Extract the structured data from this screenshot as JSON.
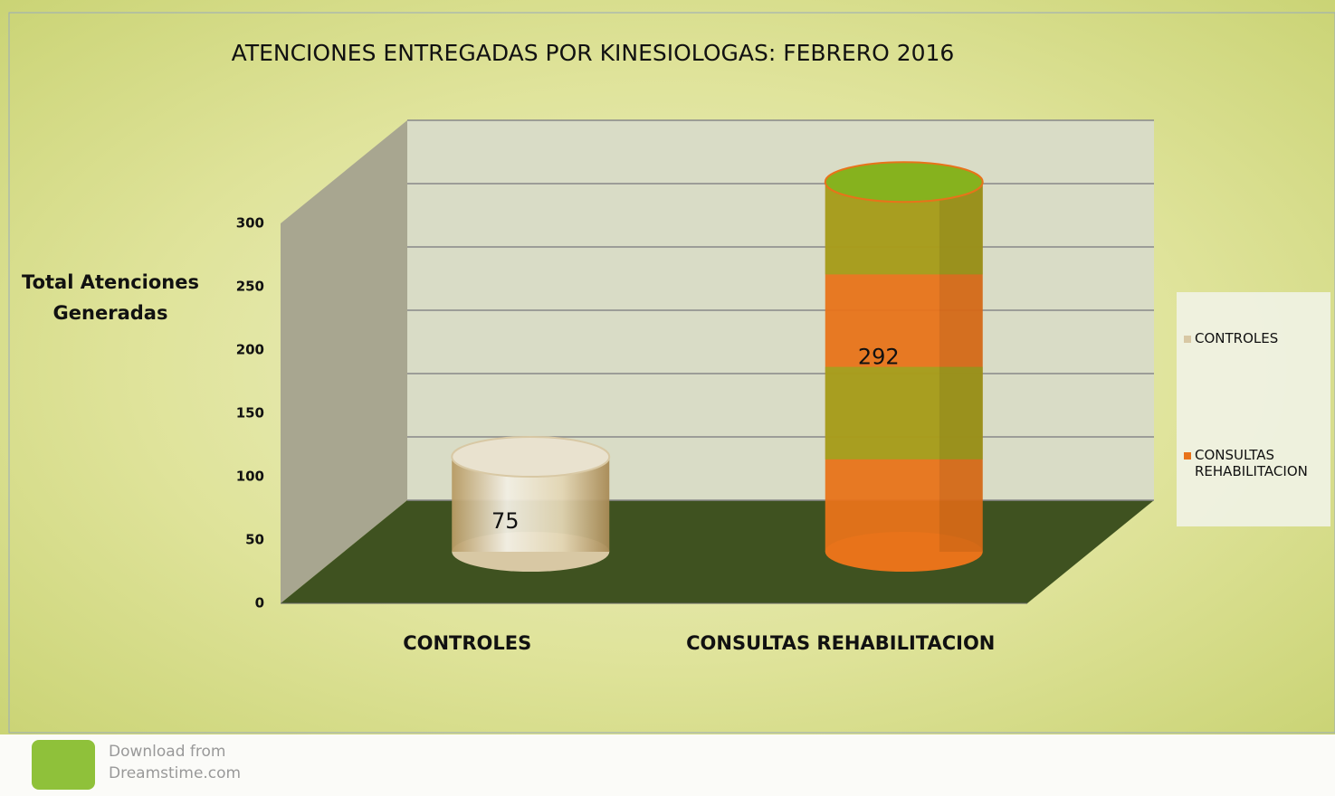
{
  "chart_data": {
    "type": "bar3d",
    "title": "ATENCIONES ENTREGADAS POR KINESIOLOGAS: FEBRERO  2016",
    "y_label": "Total Atenciones Generadas",
    "categories": [
      "CONTROLES",
      "CONSULTAS REHABILITACION"
    ],
    "values": [
      75,
      292
    ],
    "colors": [
      "#d8c8a4",
      "#e8731a"
    ],
    "ylim": [
      0,
      300
    ],
    "yticks": [
      0,
      50,
      100,
      150,
      200,
      250,
      300
    ],
    "grid": true,
    "legend": "right"
  },
  "watermark": [
    "Download from",
    "Dreamstime.com"
  ]
}
